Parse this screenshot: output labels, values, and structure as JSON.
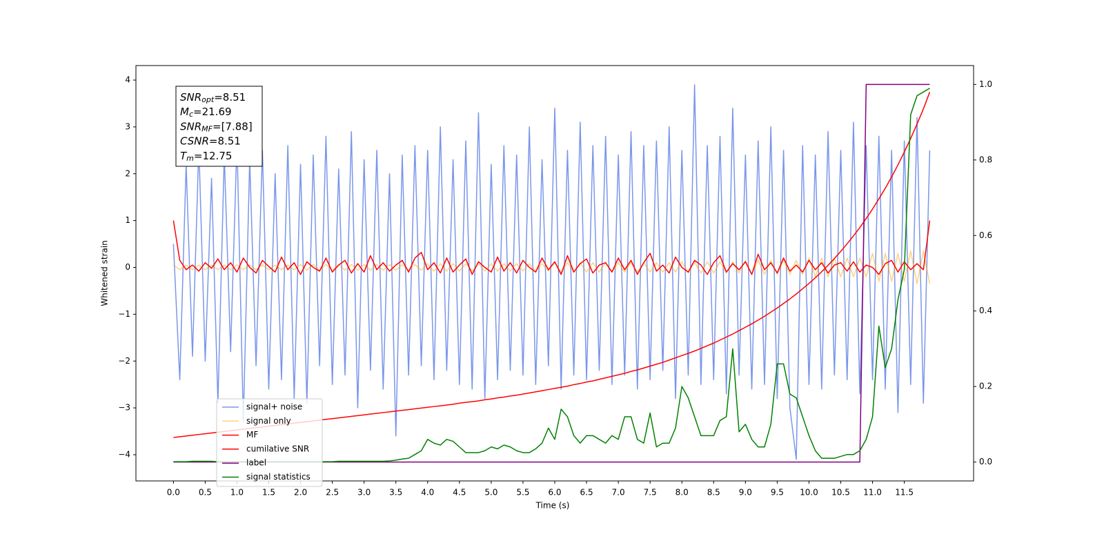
{
  "chart_data": {
    "type": "line",
    "xlabel": "Time (s)",
    "ylabel": "Whitened strain",
    "xlim": [
      -0.59,
      12.59
    ],
    "ylim": [
      -4.56,
      4.31
    ],
    "y2lim": [
      -0.05,
      1.05
    ],
    "xticks": [
      {
        "value": 0,
        "label": "0.0"
      },
      0.5,
      {
        "value": 1,
        "label": "1.0"
      },
      1.5,
      {
        "value": 2,
        "label": "2.0"
      },
      2.5,
      {
        "value": 3,
        "label": "3.0"
      },
      3.5,
      {
        "value": 4,
        "label": "4.0"
      },
      4.5,
      {
        "value": 5,
        "label": "5.0"
      },
      5.5,
      {
        "value": 6,
        "label": "6.0"
      },
      6.5,
      {
        "value": 7,
        "label": "7.0"
      },
      7.5,
      {
        "value": 8,
        "label": "8.0"
      },
      8.5,
      {
        "value": 9,
        "label": "9.0"
      },
      9.5,
      {
        "value": 10,
        "label": "10.0"
      },
      10.5,
      {
        "value": 11,
        "label": "11.0"
      },
      11.5
    ],
    "yticks": [
      {
        "value": -4,
        "label": "−4"
      },
      {
        "value": -3,
        "label": "−3"
      },
      {
        "value": -2,
        "label": "−2"
      },
      {
        "value": -1,
        "label": "−1"
      },
      0,
      1,
      2,
      3,
      4
    ],
    "y2ticks": [
      {
        "value": 0,
        "label": "0.0"
      },
      0.2,
      0.4,
      0.6,
      0.8,
      {
        "value": 1,
        "label": "1.0"
      }
    ],
    "annotations": [
      {
        "name": "SNR",
        "sub": "opt",
        "text": "=8.51"
      },
      {
        "name": "M",
        "sub": "c",
        "text": "=21.69"
      },
      {
        "name": "SNR",
        "sub": "MF",
        "text": "=[7.88]"
      },
      {
        "name": "CSNR",
        "text": "=8.51"
      },
      {
        "name": "T",
        "sub": "m",
        "text": "=12.75"
      }
    ],
    "x": [
      0.0,
      0.1,
      0.2,
      0.3,
      0.4,
      0.5,
      0.6,
      0.7,
      0.8,
      0.9,
      1.0,
      1.1,
      1.2,
      1.3,
      1.4,
      1.5,
      1.6,
      1.7,
      1.8,
      1.9,
      2.0,
      2.1,
      2.2,
      2.3,
      2.4,
      2.5,
      2.6,
      2.7,
      2.8,
      2.9,
      3.0,
      3.1,
      3.2,
      3.3,
      3.4,
      3.5,
      3.6,
      3.7,
      3.8,
      3.9,
      4.0,
      4.1,
      4.2,
      4.3,
      4.4,
      4.5,
      4.6,
      4.7,
      4.8,
      4.9,
      5.0,
      5.1,
      5.2,
      5.3,
      5.4,
      5.5,
      5.6,
      5.7,
      5.8,
      5.9,
      6.0,
      6.1,
      6.2,
      6.3,
      6.4,
      6.5,
      6.6,
      6.7,
      6.8,
      6.9,
      7.0,
      7.1,
      7.2,
      7.3,
      7.4,
      7.5,
      7.6,
      7.7,
      7.8,
      7.9,
      8.0,
      8.1,
      8.2,
      8.3,
      8.4,
      8.5,
      8.6,
      8.7,
      8.8,
      8.9,
      9.0,
      9.1,
      9.2,
      9.3,
      9.4,
      9.5,
      9.6,
      9.7,
      9.8,
      9.9,
      10.0,
      10.1,
      10.2,
      10.3,
      10.4,
      10.5,
      10.6,
      10.7,
      10.8,
      10.9,
      11.0,
      11.1,
      11.2,
      11.3,
      11.4,
      11.5,
      11.6,
      11.7,
      11.8,
      11.9
    ],
    "series": [
      {
        "name": "signal+ noise",
        "color": "#4169e1",
        "values": [
          0.5,
          -2.4,
          2.2,
          -1.9,
          2.6,
          -2.0,
          1.9,
          -2.9,
          2.4,
          -1.8,
          2.7,
          -3.3,
          2.3,
          -2.1,
          2.5,
          -2.6,
          2.0,
          -2.4,
          2.6,
          -2.8,
          2.2,
          -2.9,
          2.4,
          -2.1,
          2.8,
          -2.5,
          2.1,
          -2.3,
          2.9,
          -3.0,
          2.3,
          -2.2,
          2.5,
          -2.6,
          2.0,
          -3.6,
          2.4,
          -2.3,
          2.6,
          -2.1,
          2.5,
          -2.4,
          3.0,
          -2.2,
          2.3,
          -2.5,
          2.7,
          -2.6,
          3.3,
          -2.8,
          2.2,
          -2.4,
          2.6,
          -2.2,
          2.4,
          -2.3,
          3.0,
          -2.5,
          2.3,
          -2.1,
          3.4,
          -2.6,
          2.5,
          -2.3,
          3.1,
          -2.4,
          2.6,
          -2.2,
          2.8,
          -2.5,
          2.4,
          -2.3,
          2.9,
          -2.6,
          2.6,
          -2.4,
          2.7,
          -2.2,
          3.0,
          -2.8,
          2.5,
          -2.3,
          3.9,
          -2.5,
          2.6,
          -2.4,
          2.8,
          -2.7,
          3.4,
          -2.3,
          2.4,
          -2.6,
          2.7,
          -2.5,
          3.0,
          -2.8,
          2.5,
          -3.0,
          -4.1,
          2.6,
          -2.5,
          2.4,
          -2.6,
          2.9,
          -2.3,
          2.5,
          -2.4,
          3.1,
          -2.7,
          2.6,
          -2.4,
          2.8,
          -2.6,
          2.5,
          -3.1,
          2.7,
          -2.5,
          3.2,
          -2.9,
          2.5
        ]
      },
      {
        "name": "signal only",
        "color": "#ffa500",
        "values": [
          0.05,
          -0.05,
          0.05,
          -0.05,
          0.05,
          -0.05,
          0.05,
          -0.05,
          0.05,
          -0.05,
          0.05,
          -0.05,
          0.05,
          -0.05,
          0.05,
          -0.05,
          0.05,
          -0.05,
          0.05,
          -0.05,
          0.06,
          -0.06,
          0.06,
          -0.06,
          0.06,
          -0.06,
          0.06,
          -0.06,
          0.06,
          -0.06,
          0.06,
          -0.06,
          0.06,
          -0.06,
          0.06,
          -0.06,
          0.06,
          -0.06,
          0.06,
          -0.06,
          0.08,
          -0.08,
          0.08,
          -0.08,
          0.08,
          -0.08,
          0.08,
          -0.08,
          0.08,
          -0.08,
          0.08,
          -0.08,
          0.08,
          -0.08,
          0.08,
          -0.08,
          0.08,
          -0.08,
          0.08,
          -0.08,
          0.1,
          -0.1,
          0.1,
          -0.1,
          0.1,
          -0.1,
          0.1,
          -0.1,
          0.1,
          -0.1,
          0.1,
          -0.1,
          0.1,
          -0.1,
          0.1,
          -0.1,
          0.1,
          -0.1,
          0.1,
          -0.1,
          0.12,
          -0.12,
          0.12,
          -0.12,
          0.12,
          -0.12,
          0.12,
          -0.12,
          0.12,
          -0.12,
          0.15,
          -0.15,
          0.15,
          -0.15,
          0.15,
          -0.15,
          0.15,
          -0.15,
          0.15,
          -0.15,
          0.2,
          -0.2,
          0.2,
          -0.2,
          0.2,
          -0.2,
          0.2,
          -0.2,
          0.2,
          -0.2,
          0.3,
          -0.3,
          0.3,
          -0.3,
          0.3,
          -0.3,
          0.35,
          -0.35,
          0.35,
          -0.35
        ]
      },
      {
        "name": "MF",
        "color": "#ff0000",
        "values": [
          1.0,
          0.15,
          -0.05,
          0.05,
          -0.08,
          0.1,
          -0.02,
          0.18,
          -0.05,
          0.1,
          -0.1,
          0.2,
          0.0,
          -0.12,
          0.15,
          0.02,
          -0.1,
          0.22,
          -0.05,
          0.1,
          -0.15,
          0.12,
          0.0,
          -0.08,
          0.2,
          -0.1,
          0.05,
          0.15,
          -0.12,
          0.08,
          -0.1,
          0.25,
          -0.05,
          0.1,
          -0.08,
          0.05,
          0.15,
          -0.1,
          0.2,
          0.32,
          -0.05,
          0.1,
          -0.12,
          0.2,
          -0.1,
          0.05,
          0.18,
          -0.15,
          0.12,
          0.0,
          -0.1,
          0.22,
          -0.08,
          0.1,
          -0.12,
          0.15,
          0.0,
          -0.1,
          0.2,
          -0.05,
          0.12,
          -0.15,
          0.25,
          -0.1,
          0.08,
          0.18,
          -0.12,
          0.05,
          0.1,
          -0.1,
          0.2,
          -0.05,
          0.15,
          -0.15,
          0.1,
          0.3,
          -0.08,
          0.05,
          -0.12,
          0.22,
          0.0,
          -0.1,
          0.15,
          0.05,
          -0.15,
          0.1,
          0.25,
          -0.1,
          0.08,
          -0.05,
          0.12,
          -0.15,
          0.28,
          -0.05,
          0.1,
          -0.12,
          0.2,
          -0.08,
          0.05,
          -0.1,
          0.15,
          -0.05,
          0.1,
          -0.12,
          0.05,
          0.1,
          -0.08,
          0.12,
          -0.1,
          0.05,
          0.0,
          -0.15,
          0.08,
          0.15,
          -0.1,
          0.12,
          -0.05,
          0.08,
          -0.05,
          1.0
        ]
      },
      {
        "name": "cumilative SNR",
        "color": "#ff0000",
        "axis": "y2",
        "values": [
          0.065,
          0.067,
          0.069,
          0.071,
          0.073,
          0.075,
          0.077,
          0.079,
          0.081,
          0.083,
          0.085,
          0.087,
          0.089,
          0.091,
          0.093,
          0.095,
          0.097,
          0.099,
          0.101,
          0.103,
          0.105,
          0.107,
          0.109,
          0.111,
          0.113,
          0.115,
          0.117,
          0.119,
          0.121,
          0.123,
          0.125,
          0.127,
          0.129,
          0.131,
          0.133,
          0.135,
          0.137,
          0.139,
          0.141,
          0.143,
          0.145,
          0.147,
          0.149,
          0.151,
          0.153,
          0.156,
          0.158,
          0.16,
          0.162,
          0.165,
          0.167,
          0.17,
          0.172,
          0.175,
          0.177,
          0.18,
          0.183,
          0.186,
          0.189,
          0.192,
          0.195,
          0.198,
          0.201,
          0.205,
          0.208,
          0.212,
          0.215,
          0.219,
          0.223,
          0.227,
          0.231,
          0.235,
          0.24,
          0.244,
          0.249,
          0.254,
          0.259,
          0.264,
          0.27,
          0.276,
          0.282,
          0.288,
          0.294,
          0.301,
          0.308,
          0.315,
          0.323,
          0.331,
          0.339,
          0.348,
          0.357,
          0.366,
          0.376,
          0.386,
          0.397,
          0.408,
          0.42,
          0.432,
          0.445,
          0.459,
          0.473,
          0.488,
          0.504,
          0.521,
          0.539,
          0.558,
          0.578,
          0.599,
          0.621,
          0.645,
          0.67,
          0.697,
          0.725,
          0.755,
          0.787,
          0.821,
          0.857,
          0.895,
          0.935,
          0.98
        ]
      },
      {
        "name": "label",
        "color": "#800080",
        "axis": "y2",
        "values": [
          0,
          0,
          0,
          0,
          0,
          0,
          0,
          0,
          0,
          0,
          0,
          0,
          0,
          0,
          0,
          0,
          0,
          0,
          0,
          0,
          0,
          0,
          0,
          0,
          0,
          0,
          0,
          0,
          0,
          0,
          0,
          0,
          0,
          0,
          0,
          0,
          0,
          0,
          0,
          0,
          0,
          0,
          0,
          0,
          0,
          0,
          0,
          0,
          0,
          0,
          0,
          0,
          0,
          0,
          0,
          0,
          0,
          0,
          0,
          0,
          0,
          0,
          0,
          0,
          0,
          0,
          0,
          0,
          0,
          0,
          0,
          0,
          0,
          0,
          0,
          0,
          0,
          0,
          0,
          0,
          0,
          0,
          0,
          0,
          0,
          0,
          0,
          0,
          0,
          0,
          0,
          0,
          0,
          0,
          0,
          0,
          0,
          0,
          0,
          0,
          0,
          0,
          0,
          0,
          0,
          0,
          0,
          0,
          0,
          1,
          1,
          1,
          1,
          1,
          1,
          1,
          1,
          1,
          1,
          1
        ]
      },
      {
        "name": "signal statistics",
        "color": "#008000",
        "axis": "y2",
        "values": [
          0.001,
          0.001,
          0.001,
          0.002,
          0.002,
          0.002,
          0.002,
          0.001,
          0.001,
          0.001,
          0.001,
          0.001,
          0.001,
          0.001,
          0.001,
          0.001,
          0.001,
          0.001,
          0.001,
          0.001,
          0.001,
          0.001,
          0.001,
          0.001,
          0.001,
          0.001,
          0.002,
          0.002,
          0.002,
          0.002,
          0.002,
          0.002,
          0.002,
          0.002,
          0.003,
          0.005,
          0.008,
          0.01,
          0.02,
          0.03,
          0.06,
          0.05,
          0.045,
          0.06,
          0.055,
          0.04,
          0.025,
          0.025,
          0.025,
          0.03,
          0.04,
          0.035,
          0.045,
          0.04,
          0.03,
          0.025,
          0.025,
          0.035,
          0.05,
          0.09,
          0.06,
          0.14,
          0.12,
          0.07,
          0.05,
          0.07,
          0.07,
          0.06,
          0.05,
          0.07,
          0.06,
          0.12,
          0.12,
          0.06,
          0.05,
          0.13,
          0.04,
          0.05,
          0.05,
          0.09,
          0.2,
          0.17,
          0.12,
          0.07,
          0.07,
          0.07,
          0.11,
          0.12,
          0.3,
          0.08,
          0.1,
          0.06,
          0.04,
          0.04,
          0.1,
          0.26,
          0.26,
          0.18,
          0.17,
          0.12,
          0.07,
          0.03,
          0.01,
          0.01,
          0.01,
          0.015,
          0.02,
          0.02,
          0.03,
          0.06,
          0.12,
          0.36,
          0.25,
          0.3,
          0.43,
          0.51,
          0.92,
          0.97,
          0.98,
          0.99
        ]
      }
    ]
  }
}
